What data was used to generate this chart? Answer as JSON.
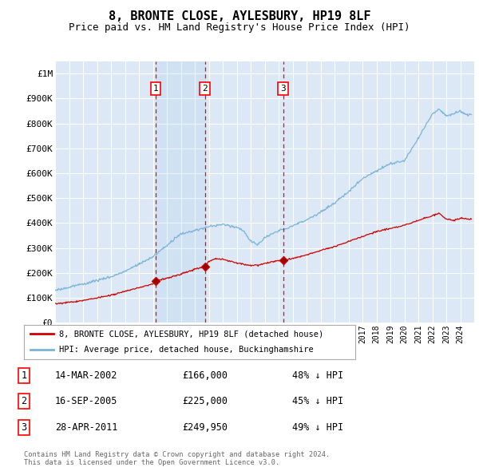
{
  "title": "8, BRONTE CLOSE, AYLESBURY, HP19 8LF",
  "subtitle": "Price paid vs. HM Land Registry's House Price Index (HPI)",
  "title_fontsize": 11,
  "subtitle_fontsize": 9,
  "ylim": [
    0,
    1050000
  ],
  "xlim_start": 1995.0,
  "xlim_end": 2025.0,
  "plot_background": "#dce8f5",
  "grid_color": "#ffffff",
  "hpi_color": "#7ab3d8",
  "property_color": "#cc0000",
  "highlight_color": "#ddeeff",
  "transactions": [
    {
      "date": 2002.2,
      "price": 166000,
      "label": "1",
      "date_str": "14-MAR-2002",
      "price_str": "£166,000",
      "pct_str": "48% ↓ HPI"
    },
    {
      "date": 2005.72,
      "price": 225000,
      "label": "2",
      "date_str": "16-SEP-2005",
      "price_str": "£225,000",
      "pct_str": "45% ↓ HPI"
    },
    {
      "date": 2011.32,
      "price": 249950,
      "label": "3",
      "date_str": "28-APR-2011",
      "price_str": "£249,950",
      "pct_str": "49% ↓ HPI"
    }
  ],
  "legend_entries": [
    "8, BRONTE CLOSE, AYLESBURY, HP19 8LF (detached house)",
    "HPI: Average price, detached house, Buckinghamshire"
  ],
  "footer_lines": [
    "Contains HM Land Registry data © Crown copyright and database right 2024.",
    "This data is licensed under the Open Government Licence v3.0."
  ],
  "yticks": [
    0,
    100000,
    200000,
    300000,
    400000,
    500000,
    600000,
    700000,
    800000,
    900000,
    1000000
  ],
  "ytick_labels": [
    "£0",
    "£100K",
    "£200K",
    "£300K",
    "£400K",
    "£500K",
    "£600K",
    "£700K",
    "£800K",
    "£900K",
    "£1M"
  ]
}
